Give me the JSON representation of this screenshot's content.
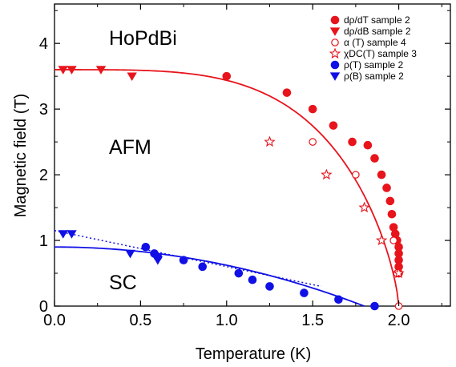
{
  "chart_data": {
    "type": "scatter",
    "xlabel": "Temperature (K)",
    "ylabel": "Magnetic field (T)",
    "xlim": [
      0,
      2.3
    ],
    "ylim": [
      0,
      4.6
    ],
    "xticks": [
      "0.0",
      "0.5",
      "1.0",
      "1.5",
      "2.0"
    ],
    "yticks": [
      "0",
      "1",
      "2",
      "3",
      "4"
    ],
    "grid": false,
    "legend_position": "top-right",
    "annotations": [
      {
        "text": "HoPdBi",
        "x": 0.3,
        "y": 4.15
      },
      {
        "text": "AFM",
        "x": 0.3,
        "y": 2.15
      },
      {
        "text": "SC",
        "x": 0.3,
        "y": 0.2
      }
    ],
    "series": [
      {
        "legend": "dρ/dT   sample 2",
        "marker": "circle-filled",
        "color": "#e8141c",
        "points": [
          [
            1.0,
            3.5
          ],
          [
            1.35,
            3.25
          ],
          [
            1.5,
            3.0
          ],
          [
            1.62,
            2.75
          ],
          [
            1.73,
            2.5
          ],
          [
            1.82,
            2.45
          ],
          [
            1.86,
            2.25
          ],
          [
            1.9,
            2.0
          ],
          [
            1.93,
            1.8
          ],
          [
            1.95,
            1.6
          ],
          [
            1.96,
            1.4
          ],
          [
            1.97,
            1.2
          ],
          [
            1.98,
            1.1
          ],
          [
            1.99,
            1.0
          ],
          [
            2.0,
            0.9
          ],
          [
            2.0,
            0.8
          ],
          [
            2.0,
            0.7
          ],
          [
            2.0,
            0.6
          ],
          [
            2.0,
            0.5
          ]
        ]
      },
      {
        "legend": "dρ/dB   sample 2",
        "marker": "triangle-down-filled",
        "color": "#e8141c",
        "points": [
          [
            0.05,
            3.6
          ],
          [
            0.1,
            3.6
          ],
          [
            0.27,
            3.6
          ],
          [
            0.45,
            3.5
          ]
        ]
      },
      {
        "legend": "α (T)     sample 4",
        "marker": "circle-open",
        "color": "#e8141c",
        "points": [
          [
            1.5,
            2.5
          ],
          [
            1.75,
            2.0
          ],
          [
            1.97,
            1.0
          ],
          [
            1.99,
            0.5
          ],
          [
            2.0,
            0.0
          ]
        ]
      },
      {
        "legend": "χDC(T)  sample 3",
        "marker": "star-open",
        "color": "#e8141c",
        "points": [
          [
            1.25,
            2.5
          ],
          [
            1.58,
            2.0
          ],
          [
            1.8,
            1.5
          ],
          [
            1.9,
            1.0
          ],
          [
            2.0,
            0.5
          ]
        ]
      },
      {
        "legend": "ρ(T)       sample 2",
        "marker": "circle-filled",
        "color": "#1010e6",
        "points": [
          [
            0.53,
            0.9
          ],
          [
            0.58,
            0.8
          ],
          [
            0.6,
            0.75
          ],
          [
            0.75,
            0.7
          ],
          [
            0.86,
            0.6
          ],
          [
            1.07,
            0.5
          ],
          [
            1.15,
            0.4
          ],
          [
            1.25,
            0.3
          ],
          [
            1.45,
            0.2
          ],
          [
            1.65,
            0.1
          ],
          [
            1.86,
            0.0
          ]
        ]
      },
      {
        "legend": "ρ(B)       sample 2",
        "marker": "triangle-down-filled",
        "color": "#1010e6",
        "points": [
          [
            0.05,
            1.1
          ],
          [
            0.1,
            1.1
          ],
          [
            0.44,
            0.8
          ],
          [
            0.6,
            0.7
          ]
        ]
      }
    ],
    "lines": [
      {
        "name": "afm-phase-boundary",
        "color": "#e8141c",
        "style": "solid",
        "tn": 2.0,
        "b0": 3.6,
        "alpha": 1.4
      },
      {
        "name": "sc-fit-solid",
        "color": "#1010e6",
        "style": "solid",
        "tc": 1.8,
        "b0": 0.9
      },
      {
        "name": "sc-fit-dotted",
        "color": "#1010e6",
        "style": "dotted",
        "points": [
          [
            0.0,
            1.15
          ],
          [
            1.55,
            0.3
          ]
        ]
      }
    ]
  }
}
